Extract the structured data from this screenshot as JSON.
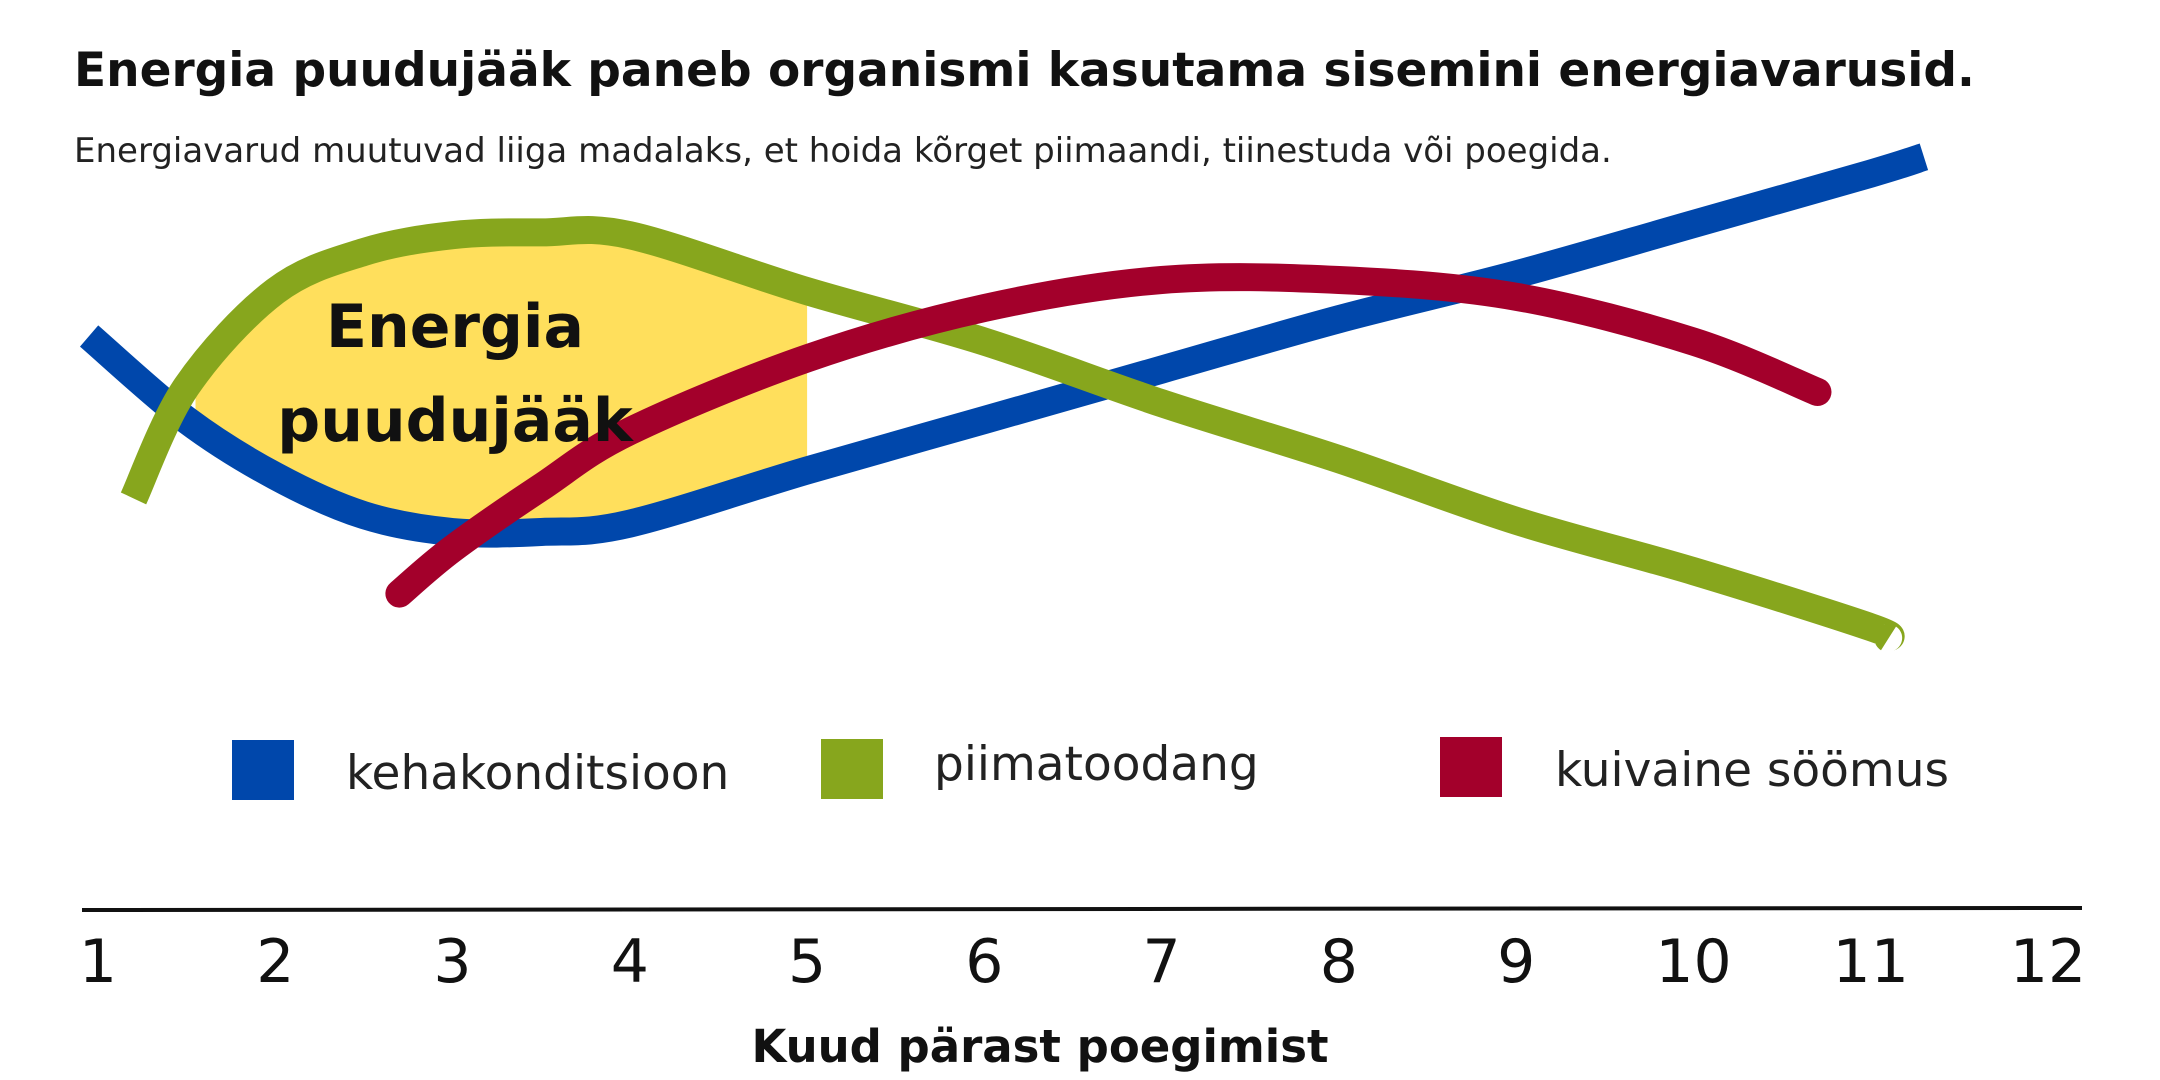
{
  "chart_data": {
    "type": "line",
    "title": "Energia puudujääk paneb organismi kasutama sisemini energiavarusid.",
    "subtitle": "Energiavarud muutuvad liiga madalaks, et hoida kõrget piimaandi, tiinestuda või poegida.",
    "annotation": [
      "Energia",
      "puudujääk"
    ],
    "xlabel": "Kuud pärast poegimist",
    "ylabel": "",
    "x_ticks": [
      "1",
      "2",
      "3",
      "4",
      "5",
      "6",
      "7",
      "8",
      "9",
      "10",
      "11",
      "12"
    ],
    "xlim": [
      1,
      12
    ],
    "ylim": [
      0,
      10
    ],
    "grid": false,
    "legend_position": "middle",
    "series": [
      {
        "name": "kehakonditsioon",
        "color": "#0047ab",
        "x": [
          0.95,
          1.5,
          2.0,
          2.5,
          3.0,
          3.5,
          4.0,
          5.0,
          6.0,
          7.0,
          8.0,
          9.0,
          10.0,
          11.0,
          11.3
        ],
        "y": [
          6.5,
          5.0,
          4.0,
          3.3,
          3.0,
          3.0,
          3.15,
          4.1,
          5.0,
          5.9,
          6.8,
          7.6,
          8.5,
          9.4,
          9.7
        ]
      },
      {
        "name": "piimatoodang",
        "color": "#87a61d",
        "x": [
          1.2,
          1.5,
          2.0,
          2.5,
          3.0,
          3.5,
          4.0,
          5.0,
          6.0,
          7.0,
          8.0,
          9.0,
          10.0,
          11.0,
          11.1
        ],
        "y": [
          3.6,
          5.6,
          7.3,
          8.0,
          8.3,
          8.35,
          8.3,
          7.3,
          6.4,
          5.3,
          4.3,
          3.2,
          2.3,
          1.3,
          1.1
        ]
      },
      {
        "name": "kuivaine söömus",
        "color": "#a3002b",
        "x": [
          2.7,
          3.0,
          3.5,
          4.0,
          5.0,
          6.0,
          7.0,
          8.0,
          9.0,
          10.0,
          10.7
        ],
        "y": [
          1.9,
          2.7,
          3.8,
          4.8,
          6.1,
          7.0,
          7.5,
          7.5,
          7.2,
          6.4,
          5.5
        ]
      }
    ]
  }
}
